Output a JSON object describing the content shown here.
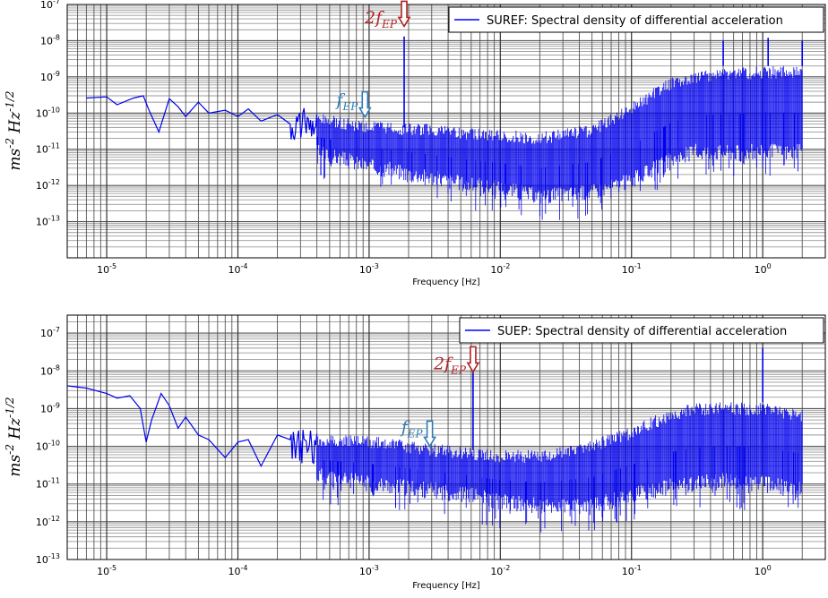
{
  "charts": [
    {
      "type": "line",
      "title": "",
      "xlabel": "Frequency [Hz]",
      "ylabel": "ms^-2 Hz^-1/2",
      "xscale": "log",
      "yscale": "log",
      "xlim": [
        5e-06,
        3
      ],
      "ylim": [
        1e-14,
        1e-07
      ],
      "grid": true,
      "legend": {
        "label": "SUREF: Spectral density of differential acceleration",
        "placement": "top-right",
        "color": "#0000ff"
      },
      "x_ticks": [
        "10-5",
        "10-4",
        "10-3",
        "10-2",
        "10-1",
        "100"
      ],
      "y_ticks": [
        "10-7",
        "10-8",
        "10-9",
        "10-10",
        "10-11",
        "10-12",
        "10-13"
      ],
      "envelope": {
        "freqs_hz": [
          0.0004,
          0.001,
          0.003,
          0.006,
          0.01,
          0.02,
          0.05,
          0.1,
          0.2,
          0.3,
          0.5,
          1.0,
          2.0
        ],
        "upper": [
          1e-10,
          6e-11,
          5e-11,
          4e-11,
          3.5e-11,
          3e-11,
          5e-11,
          2e-10,
          1e-09,
          1.5e-09,
          1.7e-09,
          2e-09,
          2e-09
        ],
        "lower": [
          5e-12,
          2e-12,
          1e-12,
          6e-13,
          5e-13,
          3e-13,
          4e-13,
          8e-13,
          3e-12,
          5e-12,
          5e-12,
          5e-12,
          5e-12
        ]
      },
      "low_freq_trace": {
        "x": [
          7e-06,
          1e-05,
          1.2e-05,
          1.6e-05,
          1.9e-05,
          2.1e-05,
          2.5e-05,
          3e-05,
          3.5e-05,
          4e-05,
          5e-05,
          6e-05,
          8e-05,
          0.0001,
          0.00012,
          0.00015,
          0.0002,
          0.00025
        ],
        "y": [
          2.6e-10,
          2.8e-10,
          1.7e-10,
          2.6e-10,
          3e-10,
          1.2e-10,
          3e-11,
          2.5e-10,
          1.5e-10,
          8e-11,
          2e-10,
          1e-10,
          1.2e-10,
          8e-11,
          1.3e-10,
          6e-11,
          9e-11,
          5e-11
        ]
      },
      "lines": [
        {
          "freq_hz": 0.00185,
          "peak": 1.3e-08,
          "base": 4e-11
        },
        {
          "freq_hz": 1.1,
          "peak": 1.2e-08,
          "base": 2e-09
        },
        {
          "freq_hz": 0.5,
          "peak": 1e-08,
          "base": 2e-09
        },
        {
          "freq_hz": 2.0,
          "peak": 1e-08,
          "base": 2e-09
        }
      ],
      "annotations": [
        {
          "label": "2f",
          "subscript": "EP",
          "color": "#b22222",
          "x": 0.00185,
          "y_text": 3e-08,
          "arrow_y": 3.5e-08
        },
        {
          "label": "f",
          "subscript": "EP",
          "color": "#2e7cb5",
          "x": 0.00093,
          "y_text": 1.6e-10,
          "arrow_y": 1.1e-10
        }
      ],
      "seed": 3
    },
    {
      "type": "line",
      "title": "",
      "xlabel": "Frequency [Hz]",
      "ylabel": "ms^-2 Hz^-1/2",
      "xscale": "log",
      "yscale": "log",
      "xlim": [
        5e-06,
        3
      ],
      "ylim": [
        1e-13,
        3e-07
      ],
      "grid": true,
      "legend": {
        "label": "SUEP: Spectral density of differential acceleration",
        "placement": "top-right",
        "color": "#0000ff"
      },
      "x_ticks": [
        "10-5",
        "10-4",
        "10-3",
        "10-2",
        "10-1",
        "100"
      ],
      "y_ticks": [
        "10-7",
        "10-8",
        "10-9",
        "10-10",
        "10-11",
        "10-12",
        "10-13"
      ],
      "envelope": {
        "freqs_hz": [
          0.0004,
          0.001,
          0.003,
          0.006,
          0.01,
          0.02,
          0.05,
          0.1,
          0.2,
          0.3,
          0.5,
          1.0,
          2.0
        ],
        "upper": [
          2e-10,
          2e-10,
          1.2e-10,
          9e-11,
          8e-11,
          8e-11,
          1.5e-10,
          3.5e-10,
          1e-09,
          1.4e-09,
          1.5e-09,
          1.4e-09,
          1e-09
        ],
        "lower": [
          1e-11,
          6e-12,
          4e-12,
          3e-12,
          2e-12,
          1.5e-12,
          1.5e-12,
          3e-12,
          5e-12,
          6e-12,
          7e-12,
          6e-12,
          4e-12
        ]
      },
      "low_freq_trace": {
        "x": [
          5e-06,
          7e-06,
          1e-05,
          1.2e-05,
          1.5e-05,
          1.8e-05,
          2e-05,
          2.2e-05,
          2.6e-05,
          3e-05,
          3.5e-05,
          4e-05,
          5e-05,
          6e-05,
          8e-05,
          0.0001,
          0.00012,
          0.00015,
          0.0002,
          0.00025
        ],
        "y": [
          4e-09,
          3.5e-09,
          2.5e-09,
          1.9e-09,
          2.2e-09,
          1e-09,
          1.3e-10,
          5e-10,
          2.5e-09,
          1.2e-09,
          3e-10,
          6e-10,
          2e-10,
          1.5e-10,
          5e-11,
          1.3e-10,
          1.5e-10,
          3e-11,
          2e-10,
          1.5e-10
        ]
      },
      "lines": [
        {
          "freq_hz": 0.0062,
          "peak": 1.7e-08,
          "base": 8e-11
        },
        {
          "freq_hz": 1.0,
          "peak": 4e-08,
          "base": 1.5e-09
        }
      ],
      "annotations": [
        {
          "label": "2f",
          "subscript": "EP",
          "color": "#b22222",
          "x": 0.0062,
          "y_text": 1.1e-08,
          "arrow_y": 1.3e-08
        },
        {
          "label": "f",
          "subscript": "EP",
          "color": "#2e7cb5",
          "x": 0.0029,
          "y_text": 2.3e-10,
          "arrow_y": 1.4e-10
        }
      ],
      "seed": 11
    }
  ],
  "chart_data": [
    {
      "type": "line",
      "title": "",
      "xlabel": "Frequency [Hz]",
      "ylabel": "ms^-2 Hz^-1/2",
      "xscale": "log",
      "yscale": "log",
      "legend": "SUREF: Spectral density of differential acceleration",
      "series": [
        {
          "name": "SUREF: Spectral density of differential acceleration",
          "x": [
            7e-06,
            1e-05,
            2e-05,
            5e-05,
            0.0001,
            0.001,
            0.00185,
            0.01,
            0.1,
            0.3,
            1.1,
            2.0
          ],
          "y": [
            2.6e-10,
            2.8e-10,
            3e-10,
            2e-10,
            8e-11,
            3e-11,
            1.3e-08,
            1.5e-11,
            6e-11,
            6e-10,
            1.2e-08,
            5e-10
          ]
        }
      ],
      "annotations": [
        "2fEP at 1.85e-3 Hz",
        "fEP at 9.3e-4 Hz"
      ]
    },
    {
      "type": "line",
      "title": "",
      "xlabel": "Frequency [Hz]",
      "ylabel": "ms^-2 Hz^-1/2",
      "xscale": "log",
      "yscale": "log",
      "legend": "SUEP: Spectral density of differential acceleration",
      "series": [
        {
          "name": "SUEP: Spectral density of differential acceleration",
          "x": [
            5e-06,
            1e-05,
            2e-05,
            5e-05,
            0.0001,
            0.001,
            0.0062,
            0.01,
            0.1,
            0.3,
            1.0,
            2.0
          ],
          "y": [
            4e-09,
            2.5e-09,
            1.3e-10,
            2e-10,
            1.3e-10,
            5e-11,
            1.7e-08,
            3e-11,
            1e-10,
            5e-10,
            4e-08,
            3e-10
          ]
        }
      ],
      "annotations": [
        "2fEP at 6.2e-3 Hz",
        "fEP at 2.9e-3 Hz"
      ]
    }
  ]
}
